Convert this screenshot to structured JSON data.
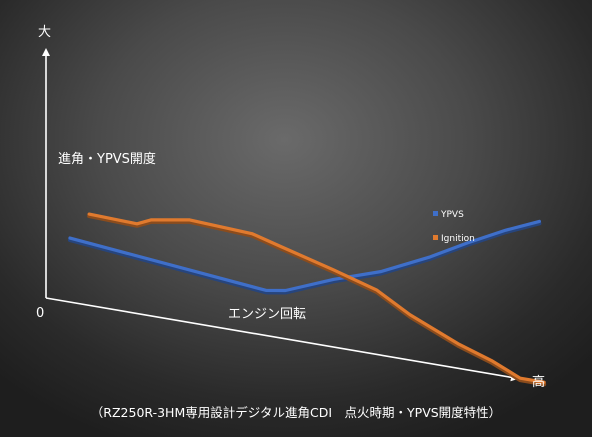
{
  "chart_data": {
    "type": "line",
    "title": "進角・YPVS開度",
    "xlabel": "エンジン回転",
    "y_top_label": "大",
    "x_end_label": "高",
    "origin_label": "0",
    "caption": "（RZ250R-3HM専用設計デジタル進角CDI　点火時期・YPVS開度特性）",
    "xlim": [
      0,
      100
    ],
    "ylim": [
      0,
      100
    ],
    "legend_position": "right",
    "grid": false,
    "series": [
      {
        "name": "YPVS",
        "color": "#3f6fc9",
        "points": [
          [
            5,
            40
          ],
          [
            46,
            28
          ],
          [
            50,
            30
          ],
          [
            60,
            42
          ],
          [
            70,
            52
          ],
          [
            80,
            66
          ],
          [
            88,
            79
          ],
          [
            96,
            91
          ],
          [
            103,
            100
          ]
        ]
      },
      {
        "name": "Ignition",
        "color": "#e07a2e",
        "points": [
          [
            9,
            57
          ],
          [
            19,
            56
          ],
          [
            22,
            60
          ],
          [
            30,
            64
          ],
          [
            43,
            62
          ],
          [
            49,
            57
          ],
          [
            60,
            48
          ],
          [
            69,
            40
          ],
          [
            76,
            28
          ],
          [
            86,
            15
          ],
          [
            93,
            8
          ],
          [
            99,
            0
          ],
          [
            104,
            0
          ]
        ]
      }
    ]
  }
}
